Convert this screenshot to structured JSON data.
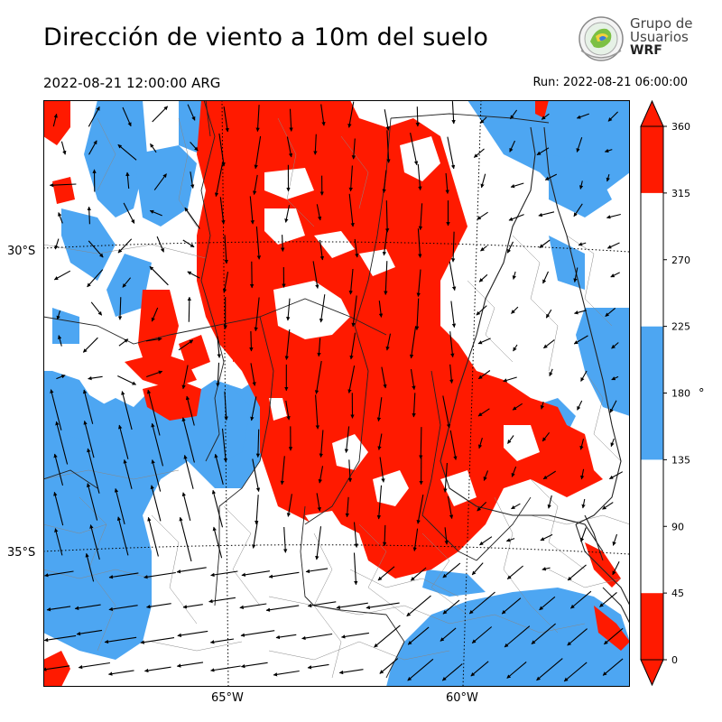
{
  "header": {
    "title": "Dirección de viento a 10m del suelo",
    "valid_time": "2022-08-21 12:00:00 ARG",
    "run_time": "Run: 2022-08-21 06:00:00"
  },
  "logo": {
    "line1": "Grupo de",
    "line2": "Usuarios",
    "line3": "WRF"
  },
  "map": {
    "lat_labels": [
      "30°S",
      "35°S"
    ],
    "lon_labels": [
      "65°W",
      "60°W"
    ],
    "colors": {
      "red": "#ff1a00",
      "blue": "#4da6f2",
      "white": "#ffffff"
    }
  },
  "colorbar": {
    "ticks": [
      "0",
      "45",
      "90",
      "135",
      "180",
      "225",
      "270",
      "315",
      "360"
    ],
    "unit": "°",
    "bins": [
      {
        "from": 0,
        "to": 45,
        "color": "#ff1a00"
      },
      {
        "from": 45,
        "to": 135,
        "color": "#ffffff"
      },
      {
        "from": 135,
        "to": 225,
        "color": "#4da6f2"
      },
      {
        "from": 225,
        "to": 315,
        "color": "#ffffff"
      },
      {
        "from": 315,
        "to": 360,
        "color": "#ff1a00"
      }
    ]
  }
}
